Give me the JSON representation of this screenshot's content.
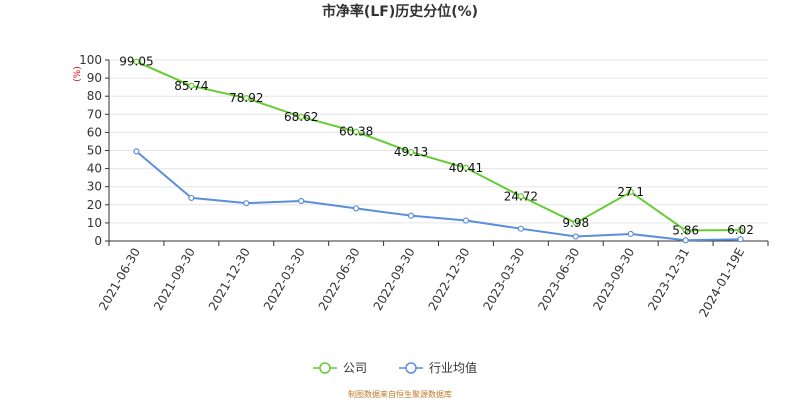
{
  "chart_data": {
    "type": "line",
    "title": "市净率(LF)历史分位(%)",
    "y_unit": "(%)",
    "xlabel": "",
    "ylabel": "",
    "ylim": [
      0,
      100
    ],
    "y_ticks": [
      0,
      10,
      20,
      30,
      40,
      50,
      60,
      70,
      80,
      90,
      100
    ],
    "grid": true,
    "legend_position": "bottom-center",
    "categories": [
      "2021-06-30",
      "2021-09-30",
      "2021-12-30",
      "2022-03-30",
      "2022-06-30",
      "2022-09-30",
      "2022-12-30",
      "2023-03-30",
      "2023-06-30",
      "2023-09-30",
      "2023-12-31",
      "2024-01-19E"
    ],
    "series": [
      {
        "name": "公司",
        "color": "#66cc33",
        "values": [
          99.05,
          85.74,
          78.92,
          68.62,
          60.38,
          49.13,
          40.41,
          24.72,
          9.98,
          27.1,
          5.86,
          6.02
        ],
        "data_labels": [
          "99.05",
          "85.74",
          "78.92",
          "68.62",
          "60.38",
          "49.13",
          "40.41",
          "24.72",
          "9.98",
          "27.1",
          "5.86",
          "6.02"
        ]
      },
      {
        "name": "行业均值",
        "color": "#5b8fdc",
        "values": [
          49.5,
          23.8,
          20.9,
          22.1,
          18.0,
          14.0,
          11.3,
          6.8,
          2.5,
          3.9,
          0.4,
          1.0
        ]
      }
    ]
  },
  "source_text": "制图数据来自恒生聚源数据库"
}
